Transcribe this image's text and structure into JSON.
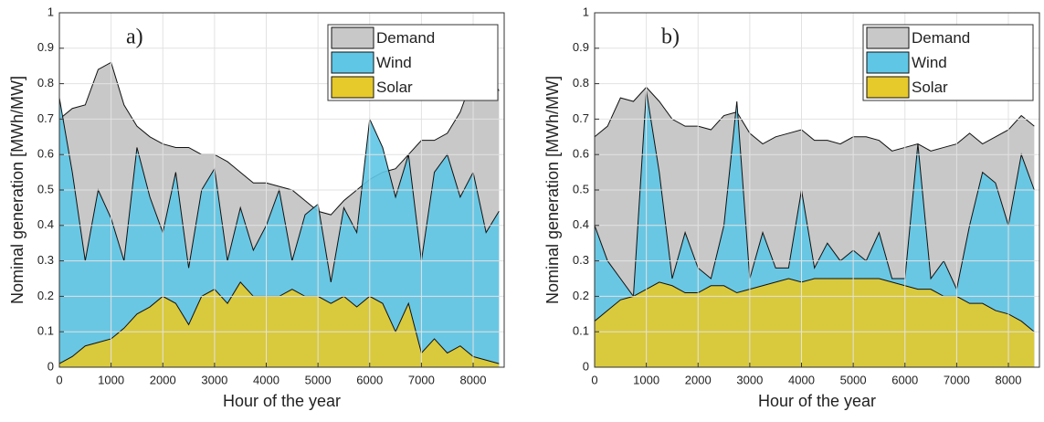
{
  "chart_data": [
    {
      "type": "area",
      "label": "a)",
      "x_label": "Hour of the year",
      "y_label": "Nominal generation [MWh/MW]",
      "x": [
        0,
        250,
        500,
        750,
        1000,
        1250,
        1500,
        1750,
        2000,
        2250,
        2500,
        2750,
        3000,
        3250,
        3500,
        3750,
        4000,
        4250,
        4500,
        4750,
        5000,
        5250,
        5500,
        5750,
        6000,
        6250,
        6500,
        6750,
        7000,
        7250,
        7500,
        7750,
        8000,
        8250,
        8500
      ],
      "series": [
        {
          "name": "Demand",
          "color": "#c8c8c8",
          "values": [
            0.7,
            0.73,
            0.74,
            0.84,
            0.86,
            0.74,
            0.68,
            0.65,
            0.63,
            0.62,
            0.62,
            0.6,
            0.6,
            0.58,
            0.55,
            0.52,
            0.52,
            0.51,
            0.5,
            0.47,
            0.44,
            0.43,
            0.47,
            0.5,
            0.53,
            0.55,
            0.56,
            0.6,
            0.64,
            0.64,
            0.66,
            0.72,
            0.82,
            0.84,
            0.78
          ]
        },
        {
          "name": "Wind",
          "color": "#5fc6e6",
          "values": [
            0.76,
            0.55,
            0.3,
            0.5,
            0.42,
            0.3,
            0.62,
            0.48,
            0.38,
            0.55,
            0.28,
            0.5,
            0.56,
            0.3,
            0.45,
            0.33,
            0.4,
            0.5,
            0.3,
            0.43,
            0.46,
            0.24,
            0.45,
            0.38,
            0.7,
            0.62,
            0.48,
            0.6,
            0.3,
            0.55,
            0.6,
            0.48,
            0.55,
            0.38,
            0.44
          ]
        },
        {
          "name": "Solar",
          "color": "#e6c92a",
          "values": [
            0.01,
            0.03,
            0.06,
            0.07,
            0.08,
            0.11,
            0.15,
            0.17,
            0.2,
            0.18,
            0.12,
            0.2,
            0.22,
            0.18,
            0.24,
            0.2,
            0.2,
            0.2,
            0.22,
            0.2,
            0.2,
            0.18,
            0.2,
            0.17,
            0.2,
            0.18,
            0.1,
            0.18,
            0.04,
            0.08,
            0.04,
            0.06,
            0.03,
            0.02,
            0.01
          ]
        }
      ],
      "xlim": [
        0,
        8600
      ],
      "xticks": [
        0,
        1000,
        2000,
        3000,
        4000,
        5000,
        6000,
        7000,
        8000
      ],
      "ylim": [
        0,
        1
      ],
      "yticks": [
        0,
        0.1,
        0.2,
        0.3,
        0.4,
        0.5,
        0.6,
        0.7,
        0.8,
        0.9,
        1
      ],
      "grid": true,
      "legend": "upper right"
    },
    {
      "type": "area",
      "label": "b)",
      "x_label": "Hour of the year",
      "y_label": "Nominal generation [MWh/MW]",
      "x": [
        0,
        250,
        500,
        750,
        1000,
        1250,
        1500,
        1750,
        2000,
        2250,
        2500,
        2750,
        3000,
        3250,
        3500,
        3750,
        4000,
        4250,
        4500,
        4750,
        5000,
        5250,
        5500,
        5750,
        6000,
        6250,
        6500,
        6750,
        7000,
        7250,
        7500,
        7750,
        8000,
        8250,
        8500
      ],
      "series": [
        {
          "name": "Demand",
          "color": "#c8c8c8",
          "values": [
            0.65,
            0.68,
            0.76,
            0.75,
            0.79,
            0.75,
            0.7,
            0.68,
            0.68,
            0.67,
            0.71,
            0.72,
            0.66,
            0.63,
            0.65,
            0.66,
            0.67,
            0.64,
            0.64,
            0.63,
            0.65,
            0.65,
            0.64,
            0.61,
            0.62,
            0.63,
            0.61,
            0.62,
            0.63,
            0.66,
            0.63,
            0.65,
            0.67,
            0.71,
            0.68
          ]
        },
        {
          "name": "Wind",
          "color": "#5fc6e6",
          "values": [
            0.4,
            0.3,
            0.25,
            0.2,
            0.78,
            0.55,
            0.25,
            0.38,
            0.28,
            0.25,
            0.4,
            0.75,
            0.25,
            0.38,
            0.28,
            0.28,
            0.5,
            0.28,
            0.35,
            0.3,
            0.33,
            0.3,
            0.38,
            0.25,
            0.25,
            0.63,
            0.25,
            0.3,
            0.22,
            0.4,
            0.55,
            0.52,
            0.4,
            0.6,
            0.5
          ]
        },
        {
          "name": "Solar",
          "color": "#e6c92a",
          "values": [
            0.13,
            0.16,
            0.19,
            0.2,
            0.22,
            0.24,
            0.23,
            0.21,
            0.21,
            0.23,
            0.23,
            0.21,
            0.22,
            0.23,
            0.24,
            0.25,
            0.24,
            0.25,
            0.25,
            0.25,
            0.25,
            0.25,
            0.25,
            0.24,
            0.23,
            0.22,
            0.22,
            0.2,
            0.2,
            0.18,
            0.18,
            0.16,
            0.15,
            0.13,
            0.1
          ]
        }
      ],
      "xlim": [
        0,
        8600
      ],
      "xticks": [
        0,
        1000,
        2000,
        3000,
        4000,
        5000,
        6000,
        7000,
        8000
      ],
      "ylim": [
        0,
        1
      ],
      "yticks": [
        0,
        0.1,
        0.2,
        0.3,
        0.4,
        0.5,
        0.6,
        0.7,
        0.8,
        0.9,
        1
      ],
      "grid": true,
      "legend": "upper right"
    }
  ]
}
